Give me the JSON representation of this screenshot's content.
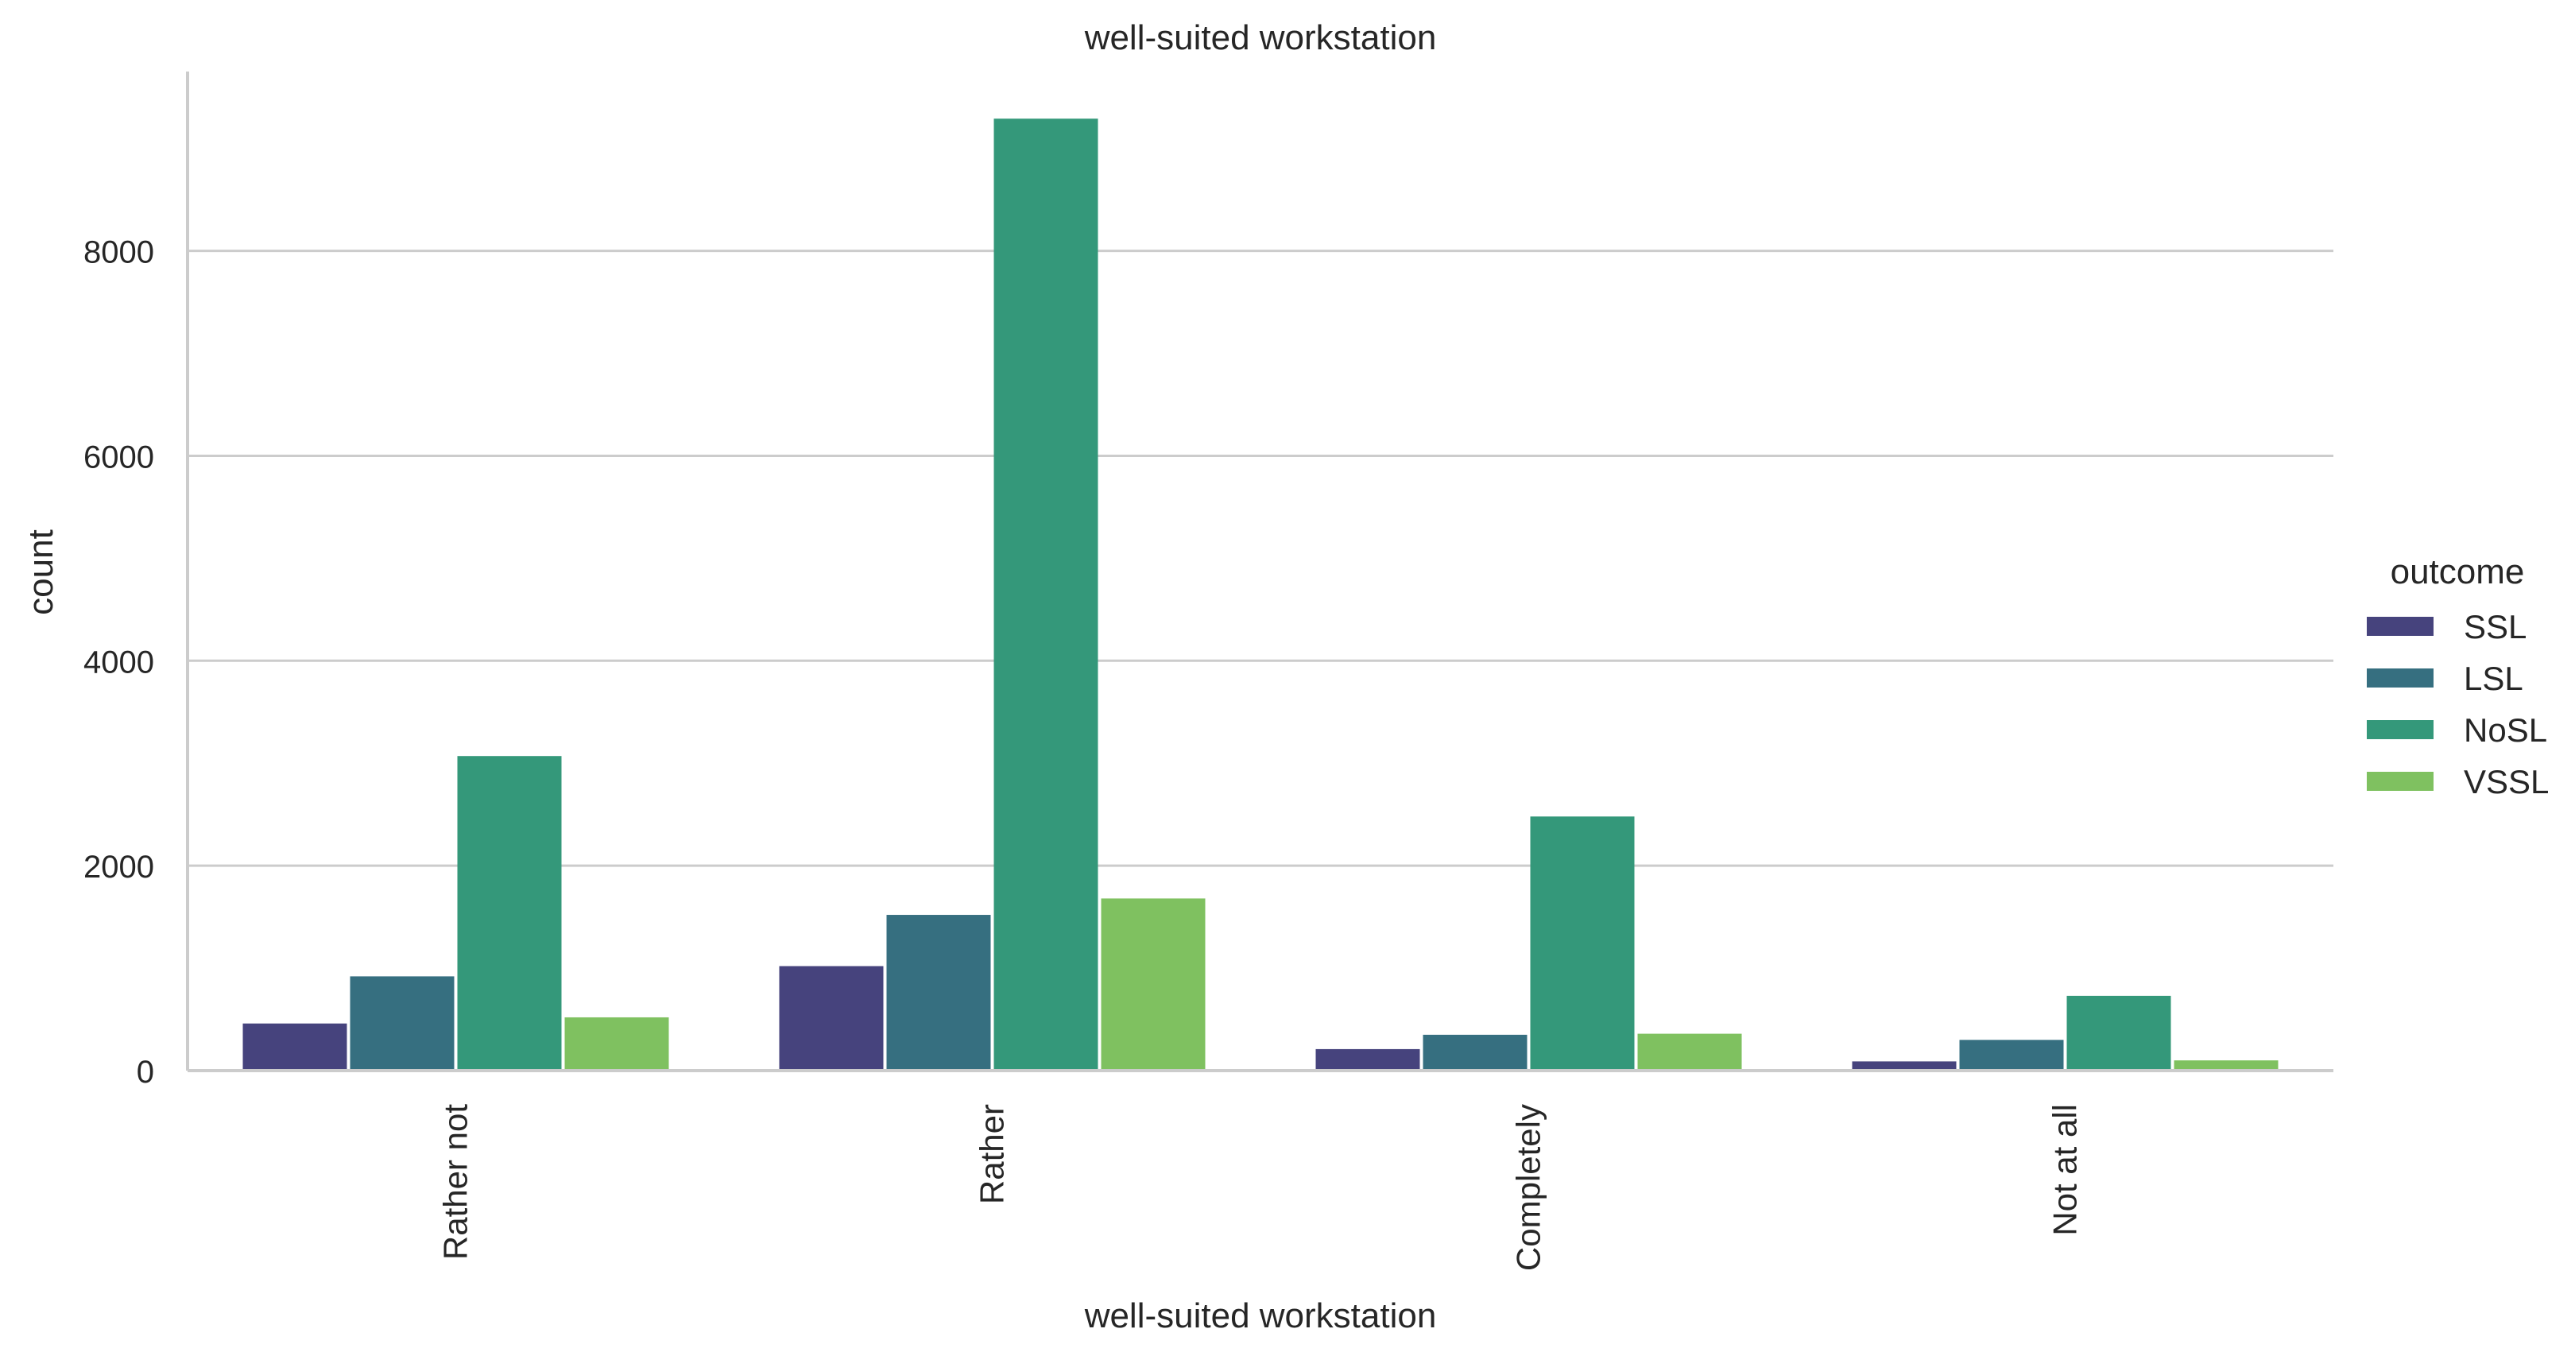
{
  "chart_data": {
    "type": "bar",
    "title": "well-suited workstation",
    "xlabel": "well-suited workstation",
    "ylabel": "count",
    "categories": [
      "Rather not",
      "Rather",
      "Completely",
      "Not at all"
    ],
    "series": [
      {
        "name": "SSL",
        "color": "#46437d",
        "values": [
          460,
          1020,
          210,
          90
        ]
      },
      {
        "name": "LSL",
        "color": "#366f80",
        "values": [
          920,
          1520,
          350,
          300
        ]
      },
      {
        "name": "NoSL",
        "color": "#34987a",
        "values": [
          3070,
          9290,
          2480,
          730
        ]
      },
      {
        "name": "VSSL",
        "color": "#7fc160",
        "values": [
          520,
          1680,
          360,
          100
        ]
      }
    ],
    "ylim": [
      0,
      9750
    ],
    "yticks": [
      0,
      2000,
      4000,
      6000,
      8000
    ],
    "grid": true,
    "legend": {
      "title": "outcome",
      "placement": "right"
    }
  }
}
